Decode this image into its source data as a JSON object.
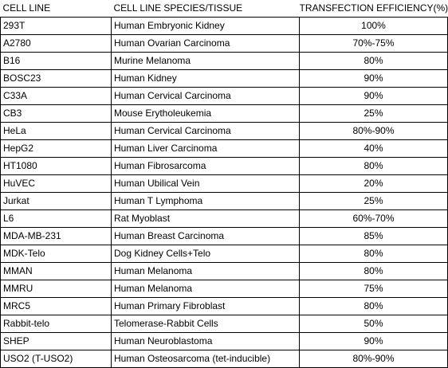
{
  "table": {
    "headers": [
      "CELL LINE",
      "CELL LINE SPECIES/TISSUE",
      "TRANSFECTION EFFICIENCY(%)"
    ],
    "rows": [
      [
        "293T",
        "Human Embryonic Kidney",
        "100%"
      ],
      [
        "A2780",
        "Human Ovarian Carcinoma",
        "70%-75%"
      ],
      [
        "B16",
        "Murine Melanoma",
        "80%"
      ],
      [
        "BOSC23",
        "Human Kidney",
        "90%"
      ],
      [
        "C33A",
        "Human Cervical Carcinoma",
        "90%"
      ],
      [
        "CB3",
        "Mouse Erytholeukemia",
        "25%"
      ],
      [
        "HeLa",
        "Human Cervical Carcinoma",
        "80%-90%"
      ],
      [
        "HepG2",
        "Human Liver Carcinoma",
        "40%"
      ],
      [
        "HT1080",
        "Human Fibrosarcoma",
        "80%"
      ],
      [
        "HuVEC",
        "Human Ubilical Vein",
        "20%"
      ],
      [
        "Jurkat",
        "Human T Lymphoma",
        "25%"
      ],
      [
        "L6",
        "Rat Myoblast",
        "60%-70%"
      ],
      [
        "MDA-MB-231",
        "Human Breast Carcinoma",
        "85%"
      ],
      [
        "MDK-Telo",
        "Dog Kidney Cells+Telo",
        "80%"
      ],
      [
        "MMAN",
        "Human Melanoma",
        "80%"
      ],
      [
        "MMRU",
        "Human Melanoma",
        "75%"
      ],
      [
        "MRC5",
        "Human Primary Fibroblast",
        "80%"
      ],
      [
        "Rabbit-telo",
        "Telomerase-Rabbit Cells",
        "50%"
      ],
      [
        "SHEP",
        "Human Neuroblastoma",
        "90%"
      ],
      [
        "USO2 (T-USO2)",
        "Human Osteosarcoma (tet-inducible)",
        "80%-90%"
      ]
    ]
  }
}
